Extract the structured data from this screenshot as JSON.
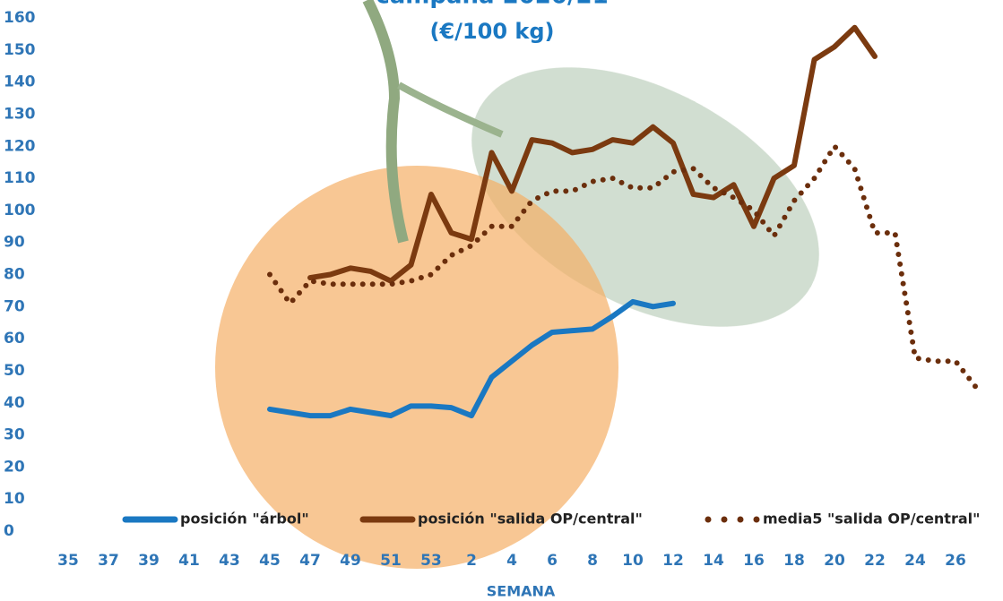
{
  "chart_data": {
    "type": "line",
    "title": "campaña 2020/21",
    "subtitle": "(€/100 kg)",
    "x_label": "SEMANA",
    "categories": [
      "35",
      null,
      "37",
      null,
      "39",
      null,
      "41",
      null,
      "43",
      null,
      "45",
      null,
      "47",
      null,
      "49",
      null,
      "51",
      null,
      "53",
      null,
      "2",
      null,
      "4",
      null,
      "6",
      null,
      "8",
      null,
      "10",
      null,
      "12",
      null,
      "14",
      null,
      "16",
      null,
      "18",
      null,
      "20",
      null,
      "22",
      null,
      "24",
      null,
      "26",
      null
    ],
    "series": [
      {
        "name": "posición \"árbol\"",
        "color": "#1a78c2",
        "style": "solid",
        "values": [
          null,
          null,
          null,
          null,
          null,
          null,
          null,
          null,
          null,
          null,
          38,
          37,
          36,
          36,
          38,
          37,
          36,
          39,
          39,
          38.5,
          36,
          48,
          53,
          58,
          62,
          62.5,
          63,
          67,
          71.5,
          70,
          71,
          null,
          null,
          null,
          null,
          null,
          null,
          null,
          null,
          null,
          null,
          null,
          null,
          null,
          null,
          null
        ]
      },
      {
        "name": "posición \"salida OP/central\"",
        "color": "#7b3a10",
        "style": "solid",
        "values": [
          null,
          null,
          null,
          null,
          null,
          null,
          null,
          null,
          null,
          null,
          null,
          null,
          79,
          80,
          82,
          81,
          78,
          83,
          105,
          93,
          91,
          118,
          106,
          122,
          121,
          118,
          119,
          122,
          121,
          126,
          121,
          105,
          104,
          108,
          95,
          110,
          114,
          147,
          151,
          157,
          148,
          null,
          null,
          null,
          null,
          null
        ]
      },
      {
        "name": "media5 \"salida OP/central\"",
        "color": "#6b2e0c",
        "style": "dotted",
        "values": [
          null,
          null,
          null,
          null,
          null,
          null,
          null,
          null,
          null,
          null,
          80,
          71,
          78,
          77,
          77,
          77,
          77,
          78,
          80,
          86,
          89,
          95,
          95,
          103,
          106,
          106,
          109,
          110,
          107,
          107,
          112,
          113,
          107,
          104,
          100,
          92,
          103,
          110,
          120,
          113,
          93,
          93,
          54,
          53,
          53,
          45
        ]
      }
    ],
    "ylim": [
      0,
      160
    ],
    "yticks": [
      0,
      10,
      20,
      30,
      40,
      50,
      60,
      70,
      80,
      90,
      100,
      110,
      120,
      130,
      140,
      150,
      160
    ]
  }
}
